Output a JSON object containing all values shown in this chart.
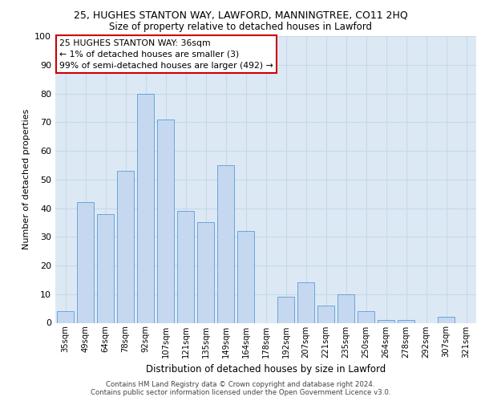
{
  "title": "25, HUGHES STANTON WAY, LAWFORD, MANNINGTREE, CO11 2HQ",
  "subtitle": "Size of property relative to detached houses in Lawford",
  "xlabel": "Distribution of detached houses by size in Lawford",
  "ylabel": "Number of detached properties",
  "categories": [
    "35sqm",
    "49sqm",
    "64sqm",
    "78sqm",
    "92sqm",
    "107sqm",
    "121sqm",
    "135sqm",
    "149sqm",
    "164sqm",
    "178sqm",
    "192sqm",
    "207sqm",
    "221sqm",
    "235sqm",
    "250sqm",
    "264sqm",
    "278sqm",
    "292sqm",
    "307sqm",
    "321sqm"
  ],
  "values": [
    4,
    42,
    38,
    53,
    80,
    71,
    39,
    35,
    55,
    32,
    0,
    9,
    14,
    6,
    10,
    4,
    1,
    1,
    0,
    2,
    0
  ],
  "bar_color": "#c5d8f0",
  "bar_edge_color": "#5b9bd5",
  "annotation_box_color": "#cc0000",
  "annotation_text": "25 HUGHES STANTON WAY: 36sqm\n← 1% of detached houses are smaller (3)\n99% of semi-detached houses are larger (492) →",
  "ylim": [
    0,
    100
  ],
  "yticks": [
    0,
    10,
    20,
    30,
    40,
    50,
    60,
    70,
    80,
    90,
    100
  ],
  "grid_color": "#c8d8e8",
  "bg_color": "#dce9f5",
  "footer1": "Contains HM Land Registry data © Crown copyright and database right 2024.",
  "footer2": "Contains public sector information licensed under the Open Government Licence v3.0."
}
